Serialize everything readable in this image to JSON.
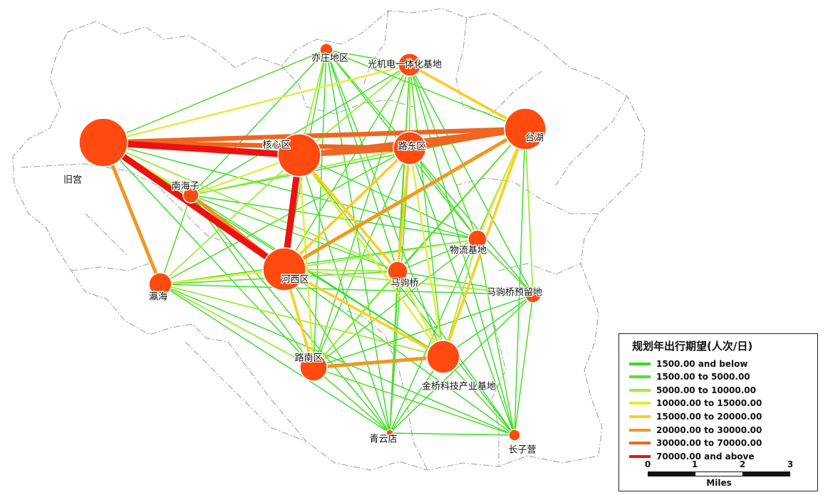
{
  "legend": {
    "title": "规划年出行期望(人次/日)",
    "classes": [
      {
        "label": "1500.00 and below",
        "color": "#33dd22"
      },
      {
        "label": "1500.00 to 5000.00",
        "color": "#55e02a"
      },
      {
        "label": "5000.00 to 10000.00",
        "color": "#99ee33"
      },
      {
        "label": "10000.00 to 15000.00",
        "color": "#ddee33"
      },
      {
        "label": "15000.00 to 20000.00",
        "color": "#ffcc22"
      },
      {
        "label": "20000.00 to 30000.00",
        "color": "#ee9922"
      },
      {
        "label": "30000.00 to 70000.00",
        "color": "#ee6622"
      },
      {
        "label": "70000.00 and above",
        "color": "#ee1111"
      }
    ]
  },
  "scale_bar": {
    "ticks": [
      "0",
      "1",
      "2",
      "3"
    ],
    "unit": "Miles"
  },
  "node_color": "#ff4a10",
  "nodes": [
    {
      "id": "jiugong",
      "label": "旧宫"
    },
    {
      "id": "hexin",
      "label": "核心区"
    },
    {
      "id": "ludong",
      "label": "路东区"
    },
    {
      "id": "taihu",
      "label": "台湖"
    },
    {
      "id": "yizhuang",
      "label": "亦庄地区"
    },
    {
      "id": "guangji",
      "label": "光机电一体化基地"
    },
    {
      "id": "nanhaizi",
      "label": "南海子"
    },
    {
      "id": "wuliu",
      "label": "物流基地"
    },
    {
      "id": "hexi",
      "label": "河西区"
    },
    {
      "id": "majuqiao",
      "label": "马驹桥"
    },
    {
      "id": "majuqiaoyl",
      "label": "马驹桥预留地"
    },
    {
      "id": "yinghai",
      "label": "瀛海"
    },
    {
      "id": "lunan",
      "label": "路南区"
    },
    {
      "id": "jinqiao",
      "label": "金桥科技产业基地"
    },
    {
      "id": "qingyundian",
      "label": "青云店"
    },
    {
      "id": "changziying",
      "label": "长子营"
    }
  ]
}
